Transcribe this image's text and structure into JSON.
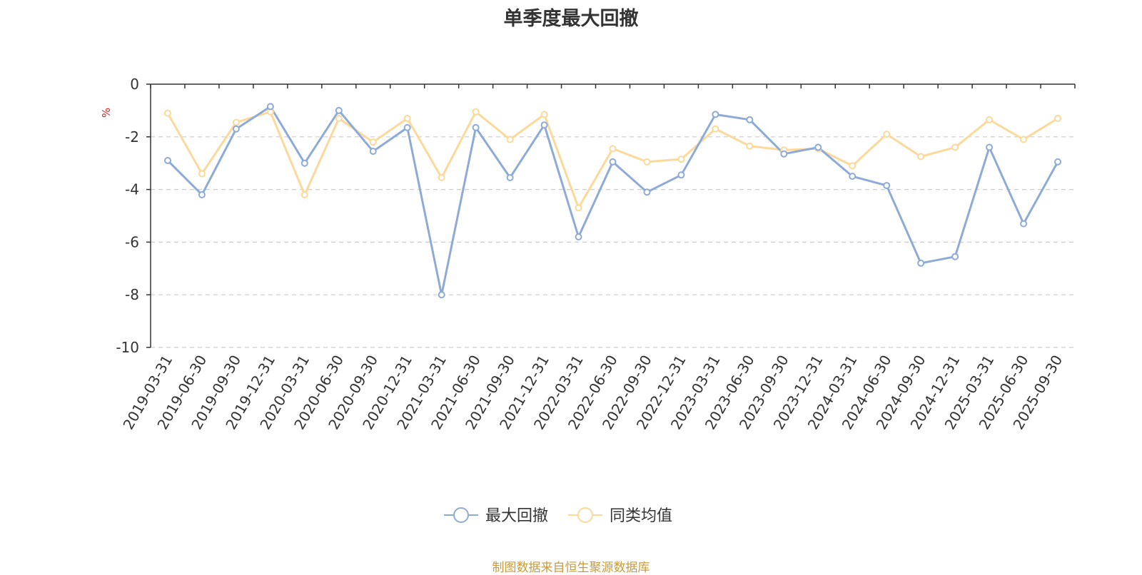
{
  "chart_data": {
    "type": "line",
    "title": "单季度最大回撤",
    "ylabel": "%",
    "xlabel": "",
    "ylim": [
      -10,
      0
    ],
    "yticks": [
      0,
      -2,
      -4,
      -6,
      -8,
      -10
    ],
    "grid": true,
    "legend_position": "bottom",
    "categories": [
      "2019-03-31",
      "2019-06-30",
      "2019-09-30",
      "2019-12-31",
      "2020-03-31",
      "2020-06-30",
      "2020-09-30",
      "2020-12-31",
      "2021-03-31",
      "2021-06-30",
      "2021-09-30",
      "2021-12-31",
      "2022-03-31",
      "2022-06-30",
      "2022-09-30",
      "2022-12-31",
      "2023-03-31",
      "2023-06-30",
      "2023-09-30",
      "2023-12-31",
      "2024-03-31",
      "2024-06-30",
      "2024-09-30",
      "2024-12-31",
      "2025-03-31",
      "2025-06-30",
      "2025-09-30"
    ],
    "series": [
      {
        "name": "最大回撤",
        "color": "#8eabd8",
        "values": [
          -2.9,
          -4.2,
          -1.7,
          -0.85,
          -3.0,
          -1.0,
          -2.55,
          -1.65,
          -8.0,
          -1.65,
          -3.55,
          -1.55,
          -5.8,
          -2.95,
          -4.1,
          -3.45,
          -1.15,
          -1.35,
          -2.65,
          -2.4,
          -3.5,
          -3.85,
          -6.8,
          -6.55,
          -2.4,
          -5.3,
          -2.95
        ]
      },
      {
        "name": "同类均值",
        "color": "#fbd99a",
        "values": [
          -1.1,
          -3.4,
          -1.45,
          -1.05,
          -4.2,
          -1.3,
          -2.2,
          -1.3,
          -3.55,
          -1.05,
          -2.1,
          -1.15,
          -4.7,
          -2.45,
          -2.95,
          -2.85,
          -1.7,
          -2.35,
          -2.5,
          -2.45,
          -3.1,
          -1.9,
          -2.75,
          -2.4,
          -1.35,
          -2.1,
          -1.3
        ]
      }
    ]
  },
  "footer": {
    "source": "制图数据来自恒生聚源数据库"
  }
}
